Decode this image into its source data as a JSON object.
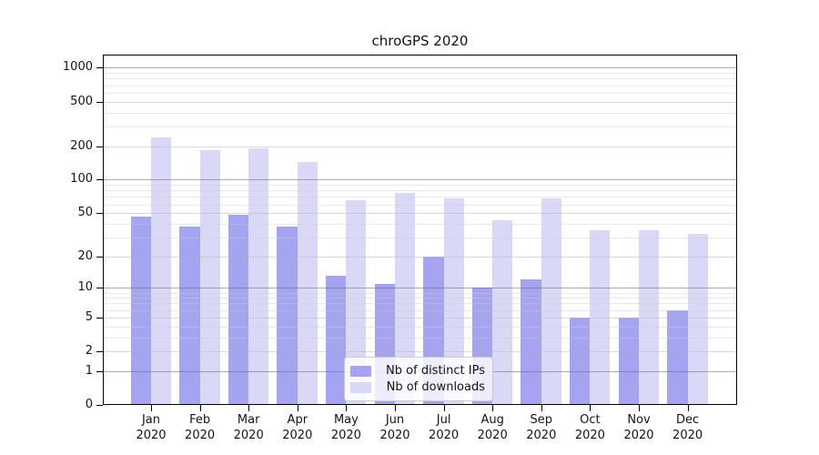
{
  "title": "chroGPS 2020",
  "chart_data": {
    "type": "bar",
    "title": "chroGPS 2020",
    "categories": [
      "Jan",
      "Feb",
      "Mar",
      "Apr",
      "May",
      "Jun",
      "Jul",
      "Aug",
      "Sep",
      "Oct",
      "Nov",
      "Dec"
    ],
    "year_label": "2020",
    "series": [
      {
        "name": "Nb of distinct IPs",
        "color": "#a4a4f1",
        "values": [
          46,
          38,
          48,
          38,
          13,
          11,
          20,
          10,
          12,
          5,
          5,
          6
        ]
      },
      {
        "name": "Nb of downloads",
        "color": "#d9d9f7",
        "values": [
          240,
          185,
          190,
          143,
          65,
          76,
          68,
          43,
          68,
          35,
          35,
          32
        ]
      }
    ],
    "yscale": "log1p",
    "ytick_values": [
      0,
      1,
      2,
      5,
      10,
      20,
      50,
      100,
      200,
      500,
      1000
    ],
    "ytick_labels": [
      "0",
      "1",
      "2",
      "5",
      "10",
      "20",
      "50",
      "100",
      "200",
      "500",
      "1000"
    ],
    "major_gridline_values": [
      1,
      10,
      100,
      1000
    ],
    "minor_gridline_values": [
      3,
      4,
      6,
      7,
      8,
      9,
      30,
      40,
      60,
      70,
      80,
      90,
      300,
      400,
      600,
      700,
      800,
      900
    ],
    "ylim": [
      0,
      1300
    ],
    "xlabel": "",
    "ylabel": "",
    "grid": true,
    "legend_position": "lower center"
  },
  "legend": {
    "items": [
      {
        "label": "Nb of distinct IPs",
        "color": "#a4a4f1"
      },
      {
        "label": "Nb of downloads",
        "color": "#d9d9f7"
      }
    ]
  }
}
